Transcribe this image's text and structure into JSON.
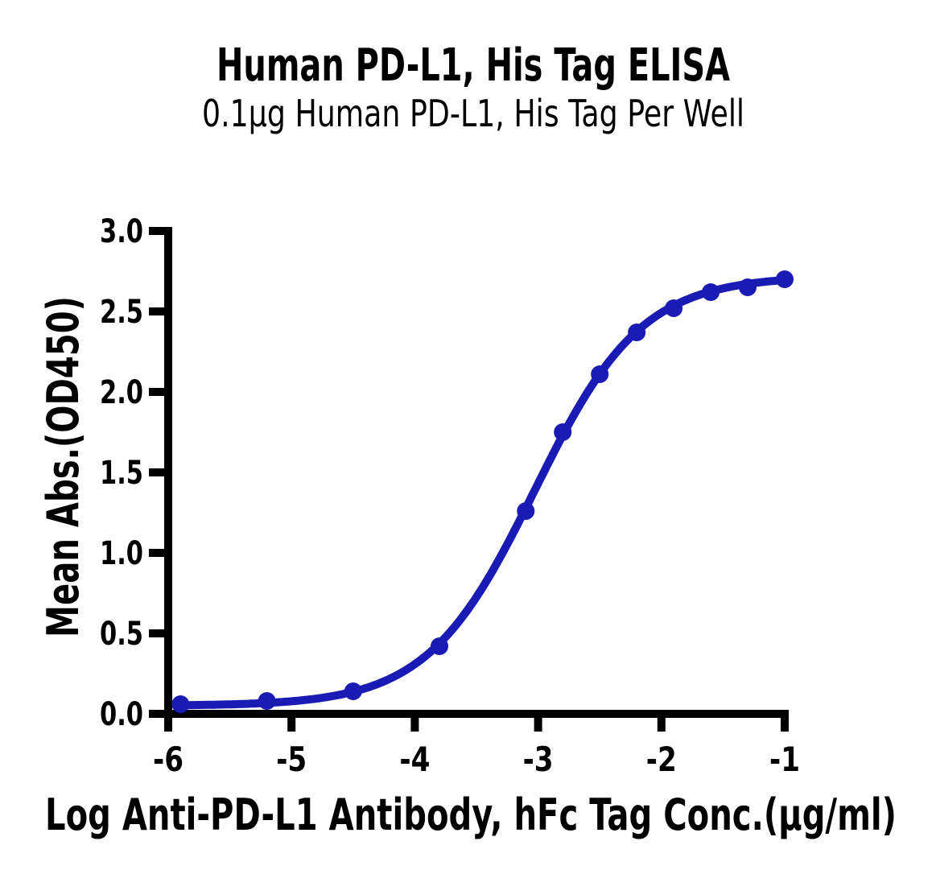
{
  "chart_data": {
    "type": "scatter",
    "title": "Human PD-L1, His Tag ELISA",
    "subtitle": "0.1µg Human PD-L1, His Tag Per Well",
    "xlabel": "Log Anti-PD-L1 Antibody, hFc Tag Conc.(µg/ml)",
    "ylabel": "Mean Abs.(OD450)",
    "xlim": [
      -6,
      -1
    ],
    "ylim": [
      0,
      3
    ],
    "xticks": [
      -6,
      -5,
      -4,
      -3,
      -2,
      -1
    ],
    "xtick_labels": [
      "-6",
      "-5",
      "-4",
      "-3",
      "-2",
      "-1"
    ],
    "yticks": [
      0,
      0.5,
      1,
      1.5,
      2,
      2.5,
      3
    ],
    "ytick_labels": [
      "0.0",
      "0.5",
      "1.0",
      "1.5",
      "2.0",
      "2.5",
      "3.0"
    ],
    "grid": false,
    "legend": null,
    "series": [
      {
        "name": "Anti-PD-L1 Antibody, hFc Tag",
        "marker": "filled-circle",
        "color": "#1a1ab5",
        "x": [
          -5.9,
          -5.2,
          -4.5,
          -3.8,
          -3.1,
          -2.8,
          -2.5,
          -2.2,
          -1.9,
          -1.6,
          -1.3,
          -1.0
        ],
        "y": [
          0.06,
          0.08,
          0.14,
          0.42,
          1.26,
          1.75,
          2.11,
          2.37,
          2.52,
          2.62,
          2.65,
          2.7
        ]
      }
    ],
    "fit_curve": {
      "model": "4PL-sigmoid",
      "bottom": 0.05,
      "top": 2.72,
      "logEC50": -3.03,
      "hill": 1.0,
      "x_start": -5.93,
      "x_end": -1.0
    }
  },
  "style": {
    "curve_color": "#1a1ab5",
    "axis_color": "#000000",
    "text_color": "#000000",
    "background": "#ffffff"
  }
}
